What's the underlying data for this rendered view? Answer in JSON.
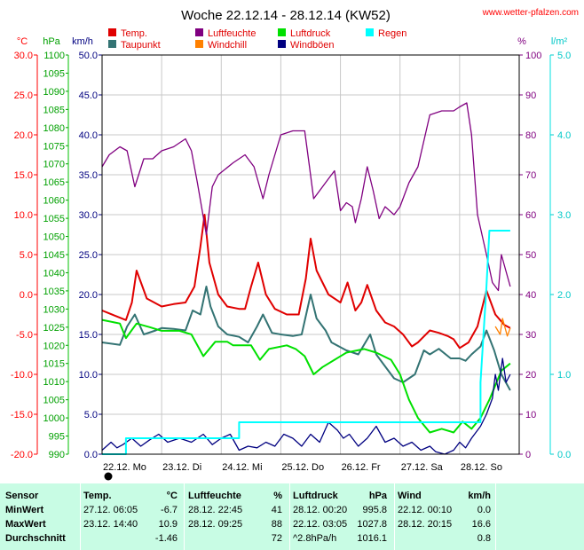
{
  "header": {
    "title": "Woche 22.12.14 - 28.12.14 (KW52)",
    "site": "www.wetter-pfalzen.com"
  },
  "units": {
    "temp": "°C",
    "pressure": "hPa",
    "wind": "km/h",
    "humidity": "%",
    "rain": "l/m²"
  },
  "legend": [
    {
      "name": "Temp.",
      "color": "#e00000"
    },
    {
      "name": "Taupunkt",
      "color": "#337373"
    },
    {
      "name": "Luftfeuchte",
      "color": "#800080"
    },
    {
      "name": "Windchill",
      "color": "#ff8000"
    },
    {
      "name": "Luftdruck",
      "color": "#00e000"
    },
    {
      "name": "Windböen",
      "color": "#000080"
    },
    {
      "name": "Regen",
      "color": "#00ffff"
    }
  ],
  "chart_data": {
    "type": "line",
    "title": "Woche 22.12.14 - 28.12.14 (KW52)",
    "x_days": [
      "22.12. Mo",
      "23.12. Di",
      "24.12. Mi",
      "25.12. Do",
      "26.12. Fr",
      "27.12. Sa",
      "28.12. So"
    ],
    "x_unit": "days since 22.12. 00:00",
    "axes": {
      "temp": {
        "label": "°C",
        "ylim": [
          -20,
          30
        ],
        "ticks": [
          "30.0",
          "25.0",
          "20.0",
          "15.0",
          "10.0",
          "5.0",
          "0.0",
          "-5.0",
          "-10.0",
          "-15.0",
          "-20.0"
        ]
      },
      "pressure": {
        "label": "hPa",
        "ylim": [
          990,
          1100
        ],
        "ticks": [
          "1100",
          "1095",
          "1090",
          "1085",
          "1080",
          "1075",
          "1070",
          "1065",
          "1060",
          "1055",
          "1050",
          "1045",
          "1040",
          "1035",
          "1030",
          "1025",
          "1020",
          "1015",
          "1010",
          "1005",
          "1000",
          "995",
          "990"
        ]
      },
      "wind": {
        "label": "km/h",
        "ylim": [
          0,
          50
        ],
        "ticks": [
          "50.0",
          "45.0",
          "40.0",
          "35.0",
          "30.0",
          "25.0",
          "20.0",
          "15.0",
          "10.0",
          "5.0",
          "0.0"
        ]
      },
      "humidity": {
        "label": "%",
        "ylim": [
          0,
          100
        ],
        "ticks": [
          "100",
          "90",
          "80",
          "70",
          "60",
          "50",
          "40",
          "30",
          "20",
          "10",
          "0"
        ]
      },
      "rain": {
        "label": "l/m²",
        "ylim": [
          0,
          5
        ],
        "ticks": [
          "5.0",
          "4.0",
          "3.0",
          "2.0",
          "1.0",
          "0.0"
        ]
      }
    },
    "grid": true,
    "series": [
      {
        "name": "Temp.",
        "axis": "temp",
        "color": "#e00000",
        "points": [
          [
            0,
            -2
          ],
          [
            0.2,
            -2.6
          ],
          [
            0.4,
            -3.2
          ],
          [
            0.5,
            -1
          ],
          [
            0.58,
            3
          ],
          [
            0.75,
            -0.5
          ],
          [
            1,
            -1.5
          ],
          [
            1.2,
            -1.2
          ],
          [
            1.4,
            -1
          ],
          [
            1.55,
            1
          ],
          [
            1.65,
            6
          ],
          [
            1.72,
            10
          ],
          [
            1.8,
            4
          ],
          [
            1.95,
            0
          ],
          [
            2.1,
            -1.5
          ],
          [
            2.3,
            -1.8
          ],
          [
            2.4,
            -1.8
          ],
          [
            2.5,
            1
          ],
          [
            2.62,
            4
          ],
          [
            2.75,
            0
          ],
          [
            2.9,
            -1.8
          ],
          [
            3.1,
            -2.5
          ],
          [
            3.3,
            -2.5
          ],
          [
            3.42,
            2
          ],
          [
            3.5,
            7
          ],
          [
            3.6,
            3
          ],
          [
            3.8,
            0
          ],
          [
            4,
            -1
          ],
          [
            4.12,
            1.5
          ],
          [
            4.25,
            -2
          ],
          [
            4.35,
            -1
          ],
          [
            4.45,
            1.2
          ],
          [
            4.6,
            -2
          ],
          [
            4.75,
            -3.5
          ],
          [
            4.9,
            -4
          ],
          [
            5.05,
            -5
          ],
          [
            5.2,
            -6.5
          ],
          [
            5.3,
            -6
          ],
          [
            5.5,
            -4.5
          ],
          [
            5.65,
            -4.8
          ],
          [
            5.8,
            -5.2
          ],
          [
            5.9,
            -5.6
          ],
          [
            6,
            -6.7
          ],
          [
            6.15,
            -6
          ],
          [
            6.3,
            -4
          ],
          [
            6.45,
            0.5
          ],
          [
            6.6,
            -2.5
          ],
          [
            6.75,
            -3.8
          ],
          [
            6.85,
            -4.2
          ]
        ]
      },
      {
        "name": "Taupunkt",
        "axis": "temp",
        "color": "#337373",
        "points": [
          [
            0,
            -6
          ],
          [
            0.3,
            -6.3
          ],
          [
            0.42,
            -4
          ],
          [
            0.55,
            -2.5
          ],
          [
            0.7,
            -5
          ],
          [
            0.9,
            -4.5
          ],
          [
            1,
            -4.2
          ],
          [
            1.2,
            -4.3
          ],
          [
            1.4,
            -4.5
          ],
          [
            1.52,
            -2
          ],
          [
            1.65,
            -2.5
          ],
          [
            1.75,
            1
          ],
          [
            1.82,
            -1.5
          ],
          [
            1.95,
            -4
          ],
          [
            2.1,
            -5
          ],
          [
            2.3,
            -5.3
          ],
          [
            2.45,
            -6
          ],
          [
            2.6,
            -4
          ],
          [
            2.7,
            -2.5
          ],
          [
            2.85,
            -4.8
          ],
          [
            3,
            -5
          ],
          [
            3.2,
            -5.2
          ],
          [
            3.35,
            -5
          ],
          [
            3.5,
            0
          ],
          [
            3.6,
            -3
          ],
          [
            3.75,
            -4.5
          ],
          [
            3.85,
            -6
          ],
          [
            4.1,
            -7
          ],
          [
            4.3,
            -7.5
          ],
          [
            4.5,
            -5
          ],
          [
            4.6,
            -7.5
          ],
          [
            4.75,
            -9
          ],
          [
            4.9,
            -10.5
          ],
          [
            5.05,
            -11
          ],
          [
            5.25,
            -10
          ],
          [
            5.4,
            -7
          ],
          [
            5.5,
            -7.5
          ],
          [
            5.65,
            -6.8
          ],
          [
            5.85,
            -8
          ],
          [
            6,
            -8
          ],
          [
            6.1,
            -8.3
          ],
          [
            6.2,
            -7.5
          ],
          [
            6.35,
            -6.5
          ],
          [
            6.45,
            -4.5
          ],
          [
            6.58,
            -7
          ],
          [
            6.7,
            -10
          ],
          [
            6.85,
            -12
          ]
        ]
      },
      {
        "name": "Windchill",
        "axis": "temp",
        "color": "#ff8000",
        "points": [
          [
            6.6,
            -4
          ],
          [
            6.68,
            -5
          ],
          [
            6.72,
            -3
          ],
          [
            6.8,
            -5.2
          ],
          [
            6.85,
            -4.2
          ]
        ]
      },
      {
        "name": "Luftfeuchte",
        "axis": "humidity",
        "color": "#800080",
        "points": [
          [
            0,
            72
          ],
          [
            0.12,
            75
          ],
          [
            0.3,
            77
          ],
          [
            0.42,
            76
          ],
          [
            0.55,
            67
          ],
          [
            0.7,
            74
          ],
          [
            0.85,
            74
          ],
          [
            1,
            76
          ],
          [
            1.2,
            77
          ],
          [
            1.4,
            79
          ],
          [
            1.5,
            76
          ],
          [
            1.6,
            68
          ],
          [
            1.75,
            55
          ],
          [
            1.85,
            67
          ],
          [
            1.95,
            70
          ],
          [
            2.2,
            73
          ],
          [
            2.4,
            75
          ],
          [
            2.55,
            72
          ],
          [
            2.7,
            64
          ],
          [
            2.8,
            70
          ],
          [
            3,
            80
          ],
          [
            3.2,
            81
          ],
          [
            3.4,
            81
          ],
          [
            3.48,
            72
          ],
          [
            3.55,
            64
          ],
          [
            3.65,
            66
          ],
          [
            3.8,
            69
          ],
          [
            3.9,
            71
          ],
          [
            4,
            61
          ],
          [
            4.1,
            63
          ],
          [
            4.2,
            62
          ],
          [
            4.25,
            58
          ],
          [
            4.35,
            64
          ],
          [
            4.45,
            72
          ],
          [
            4.55,
            66
          ],
          [
            4.65,
            59
          ],
          [
            4.75,
            62
          ],
          [
            4.9,
            60
          ],
          [
            5,
            62
          ],
          [
            5.15,
            68
          ],
          [
            5.3,
            72
          ],
          [
            5.5,
            85
          ],
          [
            5.7,
            86
          ],
          [
            5.9,
            86
          ],
          [
            6,
            87
          ],
          [
            6.12,
            88
          ],
          [
            6.2,
            80
          ],
          [
            6.3,
            60
          ],
          [
            6.45,
            50
          ],
          [
            6.55,
            43
          ],
          [
            6.65,
            41
          ],
          [
            6.7,
            50
          ],
          [
            6.85,
            42
          ]
        ]
      },
      {
        "name": "Luftdruck",
        "axis": "pressure",
        "color": "#00e000",
        "points": [
          [
            0,
            1027
          ],
          [
            0.3,
            1026
          ],
          [
            0.4,
            1022
          ],
          [
            0.58,
            1026
          ],
          [
            0.8,
            1025
          ],
          [
            1,
            1024
          ],
          [
            1.3,
            1024
          ],
          [
            1.5,
            1023
          ],
          [
            1.7,
            1017
          ],
          [
            1.9,
            1021
          ],
          [
            2.1,
            1021
          ],
          [
            2.2,
            1020
          ],
          [
            2.5,
            1020
          ],
          [
            2.65,
            1016
          ],
          [
            2.8,
            1019
          ],
          [
            3.1,
            1020
          ],
          [
            3.25,
            1019
          ],
          [
            3.4,
            1017
          ],
          [
            3.55,
            1012
          ],
          [
            3.7,
            1014
          ],
          [
            3.9,
            1016
          ],
          [
            4.1,
            1018
          ],
          [
            4.4,
            1019
          ],
          [
            4.6,
            1018
          ],
          [
            4.85,
            1016
          ],
          [
            5,
            1012
          ],
          [
            5.15,
            1005
          ],
          [
            5.3,
            1000
          ],
          [
            5.5,
            996
          ],
          [
            5.7,
            997
          ],
          [
            5.9,
            996
          ],
          [
            6.05,
            999
          ],
          [
            6.2,
            997
          ],
          [
            6.35,
            1000
          ],
          [
            6.5,
            1005
          ],
          [
            6.7,
            1013
          ],
          [
            6.85,
            1015
          ]
        ]
      },
      {
        "name": "Windböen",
        "axis": "wind",
        "color": "#000080",
        "points": [
          [
            0,
            0.5
          ],
          [
            0.15,
            1.5
          ],
          [
            0.25,
            0.8
          ],
          [
            0.35,
            1.2
          ],
          [
            0.5,
            2
          ],
          [
            0.65,
            1
          ],
          [
            0.8,
            1.8
          ],
          [
            0.95,
            2.5
          ],
          [
            1.1,
            1.5
          ],
          [
            1.3,
            2
          ],
          [
            1.5,
            1.5
          ],
          [
            1.7,
            2.5
          ],
          [
            1.85,
            1.2
          ],
          [
            2,
            2
          ],
          [
            2.15,
            2.5
          ],
          [
            2.3,
            0.5
          ],
          [
            2.45,
            1
          ],
          [
            2.6,
            0.8
          ],
          [
            2.75,
            1.5
          ],
          [
            2.9,
            1
          ],
          [
            3.05,
            2.5
          ],
          [
            3.2,
            2
          ],
          [
            3.35,
            1
          ],
          [
            3.5,
            2.5
          ],
          [
            3.65,
            1.5
          ],
          [
            3.8,
            4
          ],
          [
            3.95,
            3
          ],
          [
            4.05,
            2
          ],
          [
            4.15,
            2.5
          ],
          [
            4.3,
            1
          ],
          [
            4.45,
            2
          ],
          [
            4.6,
            3.5
          ],
          [
            4.75,
            1.5
          ],
          [
            4.9,
            2
          ],
          [
            5.05,
            1
          ],
          [
            5.2,
            1.5
          ],
          [
            5.35,
            0.5
          ],
          [
            5.5,
            1
          ],
          [
            5.6,
            0.3
          ],
          [
            5.75,
            0
          ],
          [
            5.9,
            0.5
          ],
          [
            6,
            1.5
          ],
          [
            6.1,
            0.8
          ],
          [
            6.2,
            2
          ],
          [
            6.35,
            3.5
          ],
          [
            6.45,
            5
          ],
          [
            6.55,
            7
          ],
          [
            6.6,
            10
          ],
          [
            6.65,
            8
          ],
          [
            6.72,
            12
          ],
          [
            6.78,
            9
          ],
          [
            6.85,
            10
          ]
        ]
      },
      {
        "name": "Regen",
        "axis": "rain",
        "color": "#00ffff",
        "points": [
          [
            0,
            0
          ],
          [
            0.4,
            0
          ],
          [
            0.4,
            0.2
          ],
          [
            2.3,
            0.2
          ],
          [
            2.3,
            0.4
          ],
          [
            6.35,
            0.4
          ],
          [
            6.35,
            0.9
          ],
          [
            6.45,
            2.1
          ],
          [
            6.5,
            2.8
          ],
          [
            6.85,
            2.8
          ]
        ]
      }
    ]
  },
  "table": {
    "headers": [
      {
        "text": "Sensor",
        "col": "sensor"
      },
      {
        "text": "Temp.",
        "col": "temp_label"
      },
      {
        "text": "°C",
        "col": "temp_val"
      },
      {
        "text": "Luftfeuchte",
        "col": "hum_label"
      },
      {
        "text": "%",
        "col": "hum_val"
      },
      {
        "text": "Luftdruck",
        "col": "press_label"
      },
      {
        "text": "hPa",
        "col": "press_val"
      },
      {
        "text": "Wind",
        "col": "wind_label"
      },
      {
        "text": "km/h",
        "col": "wind_val"
      }
    ],
    "rows": [
      [
        "MinWert",
        "27.12.  06:05",
        "-6.7",
        "28.12.  22:45",
        "41",
        "28.12.  00:20",
        "995.8",
        "22.12.  00:10",
        "0.0"
      ],
      [
        "MaxWert",
        "23.12.  14:40",
        "10.9",
        "28.12.  09:25",
        "88",
        "22.12.  03:05",
        "1027.8",
        "28.12.  20:15",
        "16.6"
      ],
      [
        "Durchschnitt",
        "",
        "-1.46",
        "",
        "72",
        "^2.8hPa/h",
        "1016.1",
        "",
        "0.8"
      ]
    ]
  }
}
